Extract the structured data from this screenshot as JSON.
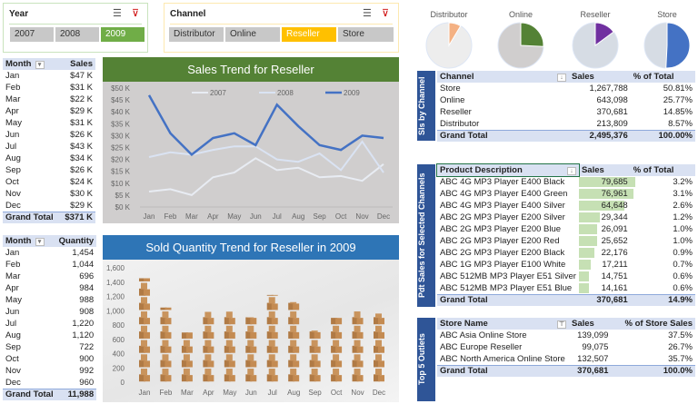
{
  "year_slicer": {
    "title": "Year",
    "items": [
      "2007",
      "2008",
      "2009"
    ],
    "selected": "2009"
  },
  "channel_slicer": {
    "title": "Channel",
    "items": [
      "Distributor",
      "Online",
      "Reseller",
      "Store"
    ],
    "selected": "Reseller"
  },
  "sales_table": {
    "headers": [
      "Month",
      "Sales"
    ],
    "rows": [
      [
        "Jan",
        "$47 K"
      ],
      [
        "Feb",
        "$31 K"
      ],
      [
        "Mar",
        "$22 K"
      ],
      [
        "Apr",
        "$29 K"
      ],
      [
        "May",
        "$31 K"
      ],
      [
        "Jun",
        "$26 K"
      ],
      [
        "Jul",
        "$43 K"
      ],
      [
        "Aug",
        "$34 K"
      ],
      [
        "Sep",
        "$26 K"
      ],
      [
        "Oct",
        "$24 K"
      ],
      [
        "Nov",
        "$30 K"
      ],
      [
        "Dec",
        "$29 K"
      ]
    ],
    "total": [
      "Grand Total",
      "$371 K"
    ]
  },
  "qty_table": {
    "headers": [
      "Month",
      "Quantity"
    ],
    "rows": [
      [
        "Jan",
        "1,454"
      ],
      [
        "Feb",
        "1,044"
      ],
      [
        "Mar",
        "696"
      ],
      [
        "Apr",
        "984"
      ],
      [
        "May",
        "988"
      ],
      [
        "Jun",
        "908"
      ],
      [
        "Jul",
        "1,220"
      ],
      [
        "Aug",
        "1,120"
      ],
      [
        "Sep",
        "722"
      ],
      [
        "Oct",
        "900"
      ],
      [
        "Nov",
        "992"
      ],
      [
        "Dec",
        "960"
      ]
    ],
    "total": [
      "Grand Total",
      "11,988"
    ]
  },
  "chart_data": [
    {
      "type": "line",
      "title": "Sales Trend for Reseller",
      "categories": [
        "Jan",
        "Feb",
        "Mar",
        "Apr",
        "May",
        "Jun",
        "Jul",
        "Aug",
        "Sep",
        "Oct",
        "Nov",
        "Dec"
      ],
      "ylim": [
        0,
        50
      ],
      "yticks": [
        "$0 K",
        "$5 K",
        "$10 K",
        "$15 K",
        "$20 K",
        "$25 K",
        "$30 K",
        "$35 K",
        "$40 K",
        "$45 K",
        "$50 K"
      ],
      "legend": "top",
      "title_color": "#548235",
      "series": [
        {
          "name": "2007",
          "color": "#e8ecf3",
          "values": [
            6.5,
            7.5,
            5,
            12.5,
            14.5,
            20.5,
            15.5,
            16.5,
            12.5,
            13,
            11,
            18
          ]
        },
        {
          "name": "2008",
          "color": "#dae3f3",
          "values": [
            21,
            23,
            22,
            24,
            25.5,
            25.5,
            20,
            19,
            22.5,
            15.5,
            27.5,
            14.5
          ]
        },
        {
          "name": "2009",
          "color": "#4472c4",
          "values": [
            47,
            31,
            22,
            29,
            31,
            26,
            43,
            34,
            26,
            24,
            30,
            29
          ]
        }
      ]
    },
    {
      "type": "bar",
      "title": "Sold Quantity Trend for Reseller in 2009",
      "title_color": "#2e75b6",
      "categories": [
        "Jan",
        "Feb",
        "Mar",
        "Apr",
        "May",
        "Jun",
        "Jul",
        "Aug",
        "Sep",
        "Oct",
        "Nov",
        "Dec"
      ],
      "values": [
        1454,
        1044,
        696,
        984,
        988,
        908,
        1220,
        1120,
        722,
        900,
        992,
        960
      ],
      "ylim": [
        0,
        1600
      ],
      "yticks": [
        "0",
        "200",
        "400",
        "600",
        "800",
        "1,000",
        "1,200",
        "1,400",
        "1,600"
      ]
    },
    {
      "type": "pie",
      "slices": [
        {
          "label": "Distributor",
          "share": 8.57,
          "color": "#f4b183",
          "bg": "#ededed"
        },
        {
          "label": "Online",
          "share": 25.77,
          "color": "#548235",
          "bg": "#d0cece"
        },
        {
          "label": "Reseller",
          "share": 14.85,
          "color": "#7030a0",
          "bg": "#d6dce4"
        },
        {
          "label": "Store",
          "share": 50.81,
          "color": "#4472c4",
          "bg": "#d6dce4"
        }
      ]
    }
  ],
  "channel_table": {
    "side_label": "Sls by Channel",
    "headers": [
      "Channel",
      "Sales",
      "% of Total"
    ],
    "rows": [
      [
        "Store",
        "1,267,788",
        "50.81%"
      ],
      [
        "Online",
        "643,098",
        "25.77%"
      ],
      [
        "Reseller",
        "370,681",
        "14.85%"
      ],
      [
        "Distributor",
        "213,809",
        "8.57%"
      ]
    ],
    "total": [
      "Grand Total",
      "2,495,376",
      "100.00%"
    ]
  },
  "product_table": {
    "side_label": "Pdt Sales for Selected Channels",
    "headers": [
      "Product Description",
      "Sales",
      "% of Total"
    ],
    "rows": [
      [
        "ABC 4G MP3 Player E400 Black",
        "79,685",
        "3.2%",
        79685
      ],
      [
        "ABC 4G MP3 Player E400 Green",
        "76,961",
        "3.1%",
        76961
      ],
      [
        "ABC 4G MP3 Player E400 Silver",
        "64,648",
        "2.6%",
        64648
      ],
      [
        "ABC 2G MP3 Player E200 Silver",
        "29,344",
        "1.2%",
        29344
      ],
      [
        "ABC 2G MP3 Player E200 Blue",
        "26,091",
        "1.0%",
        26091
      ],
      [
        "ABC 2G MP3 Player E200 Red",
        "25,652",
        "1.0%",
        25652
      ],
      [
        "ABC 2G MP3 Player E200 Black",
        "22,176",
        "0.9%",
        22176
      ],
      [
        "ABC 1G MP3 Player E100 White",
        "17,211",
        "0.7%",
        17211
      ],
      [
        "ABC 512MB MP3 Player E51 Silver",
        "14,751",
        "0.6%",
        14751
      ],
      [
        "ABC 512MB MP3 Player E51 Blue",
        "14,161",
        "0.6%",
        14161
      ]
    ],
    "total": [
      "Grand Total",
      "370,681",
      "14.9%"
    ]
  },
  "outlet_table": {
    "side_label": "Top 5 Outlets",
    "headers": [
      "Store Name",
      "Sales",
      "% of Store Sales"
    ],
    "rows": [
      [
        "ABC Asia Online Store",
        "139,099",
        "37.5%"
      ],
      [
        "ABC Europe Reseller",
        "99,075",
        "26.7%"
      ],
      [
        "ABC North America Online Store",
        "132,507",
        "35.7%"
      ]
    ],
    "total": [
      "Grand Total",
      "370,681",
      "100.0%"
    ]
  }
}
